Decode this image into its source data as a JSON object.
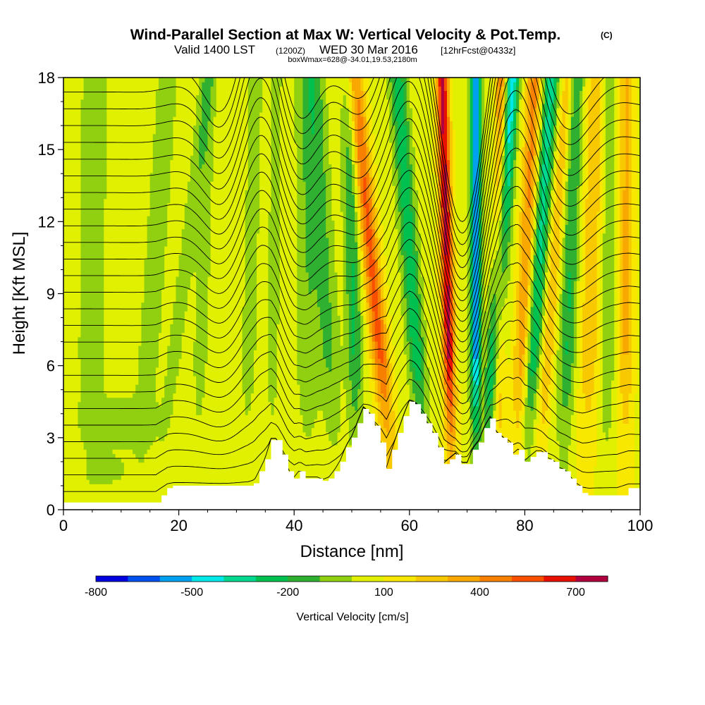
{
  "chart_data": {
    "type": "heatmap",
    "title": "Wind-Parallel Section at Max W: Vertical Velocity & Pot.Temp.",
    "title_mark": "(C)",
    "subtitle_valid": "Valid 1400 LST",
    "subtitle_utc": "(1200Z)",
    "subtitle_date": "WED 30 Mar 2016",
    "subtitle_fcst": "[12hrFcst@0433z]",
    "subtitle2": "boxWmax=628@-34.01,19.53,2180m",
    "xlabel": "Distance [nm]",
    "ylabel": "Height [Kft MSL]",
    "xlim": [
      0,
      100
    ],
    "ylim": [
      0,
      18
    ],
    "xticks": [
      0,
      20,
      40,
      60,
      80,
      100
    ],
    "yticks": [
      0,
      3,
      6,
      9,
      12,
      15,
      18
    ],
    "colorbar": {
      "label": "Vertical Velocity [cm/s]",
      "levels": [
        -800,
        -700,
        -600,
        -500,
        -400,
        -300,
        -200,
        -100,
        0,
        100,
        200,
        300,
        400,
        500,
        600,
        700,
        800
      ],
      "tick_labels": [
        "-800",
        "-500",
        "-200",
        "100",
        "400",
        "700"
      ],
      "tick_values": [
        -800,
        -500,
        -200,
        100,
        400,
        700
      ],
      "colors": [
        "#0000e0",
        "#0050f0",
        "#00a0f0",
        "#00e8e8",
        "#00d890",
        "#00c050",
        "#30b030",
        "#90d010",
        "#e0f000",
        "#f8e800",
        "#f8c800",
        "#f8a800",
        "#f88000",
        "#f85000",
        "#e81000",
        "#b00040"
      ]
    },
    "terrain": {
      "x": [
        0,
        16,
        17,
        18,
        19,
        21,
        23,
        25,
        27,
        29,
        31,
        32,
        33,
        34,
        35,
        36,
        37,
        38,
        39,
        40,
        41,
        42,
        43,
        44,
        45,
        46,
        47,
        48,
        49,
        50,
        51,
        52,
        53,
        54,
        55,
        56,
        57,
        58,
        59,
        60,
        61,
        62,
        63,
        64,
        65,
        66,
        67,
        68,
        69,
        70,
        71,
        72,
        73,
        74,
        75,
        76,
        77,
        78,
        79,
        80,
        81,
        82,
        83,
        84,
        85,
        86,
        87,
        88,
        89,
        90,
        91,
        92,
        93,
        94,
        95,
        96,
        98,
        100
      ],
      "h": [
        0.3,
        0.3,
        0.6,
        0.9,
        1.0,
        1.0,
        1.0,
        1.0,
        1.0,
        1.0,
        1.0,
        1.0,
        1.1,
        1.6,
        2.1,
        2.9,
        2.9,
        2.3,
        1.6,
        1.3,
        1.6,
        1.3,
        1.3,
        1.3,
        1.2,
        1.3,
        1.6,
        2.0,
        2.6,
        3.0,
        3.6,
        4.2,
        4.0,
        3.5,
        2.8,
        1.7,
        2.5,
        3.2,
        3.9,
        4.5,
        4.4,
        4.0,
        3.6,
        3.2,
        2.6,
        1.9,
        2.1,
        2.3,
        1.9,
        1.9,
        2.5,
        2.8,
        3.4,
        3.8,
        3.2,
        3.0,
        2.8,
        2.3,
        2.5,
        2.0,
        2.2,
        2.4,
        2.4,
        2.1,
        2.0,
        1.7,
        1.6,
        1.3,
        1.0,
        0.7,
        0.6,
        0.6,
        0.6,
        0.6,
        0.6,
        0.6,
        0.9,
        0.9
      ]
    },
    "w_bands": [
      {
        "x": 4.5,
        "slope": 0.05,
        "width": 2.2,
        "w": -150
      },
      {
        "x": 13,
        "slope": 0.28,
        "width": 1.8,
        "w": -140
      },
      {
        "x": 16,
        "slope": 0.5,
        "width": 1.4,
        "w": -110
      },
      {
        "x": 23,
        "slope": 0.12,
        "width": 1.4,
        "w": -110
      },
      {
        "x": 31.5,
        "slope": 0.1,
        "width": 1.4,
        "w": -110
      },
      {
        "x": 36,
        "slope": 0.05,
        "width": 1.1,
        "w": -110
      },
      {
        "x": 42.5,
        "slope": -0.02,
        "width": 2.0,
        "w": -150
      },
      {
        "x": 47.5,
        "slope": -0.22,
        "width": 1.8,
        "w": -180
      },
      {
        "x": 51,
        "slope": -0.08,
        "width": 1.4,
        "w": -270
      },
      {
        "x": 57.5,
        "slope": -0.4,
        "width": 1.6,
        "w": 470
      },
      {
        "x": 63,
        "slope": -0.28,
        "width": 1.5,
        "w": -330
      },
      {
        "x": 67.5,
        "slope": -0.1,
        "width": 1.1,
        "w": 660
      },
      {
        "x": 71.5,
        "slope": 0.0,
        "width": 0.9,
        "w": -620
      },
      {
        "x": 73.2,
        "slope": 0.25,
        "width": 1.3,
        "w": -580
      },
      {
        "x": 75,
        "slope": 0.06,
        "width": 1.1,
        "w": 450
      },
      {
        "x": 78.5,
        "slope": 0.18,
        "width": 1.5,
        "w": 380
      },
      {
        "x": 79.5,
        "slope": 0.28,
        "width": 1.5,
        "w": -420
      },
      {
        "x": 82,
        "slope": 0.3,
        "width": 1.2,
        "w": 260
      },
      {
        "x": 86.5,
        "slope": 0.14,
        "width": 1.6,
        "w": -270
      },
      {
        "x": 90.5,
        "slope": 0.1,
        "width": 2.0,
        "w": 220
      },
      {
        "x": 94,
        "slope": 0.04,
        "width": 1.3,
        "w": -180
      },
      {
        "x": 97.5,
        "slope": 0.0,
        "width": 1.4,
        "w": 250
      }
    ],
    "contour_levels": [
      300,
      302,
      304,
      306,
      308,
      310,
      312,
      314,
      316,
      318,
      320,
      322,
      324,
      326,
      328,
      330,
      332,
      334,
      336,
      338,
      340,
      342,
      344,
      346,
      348,
      350
    ]
  }
}
